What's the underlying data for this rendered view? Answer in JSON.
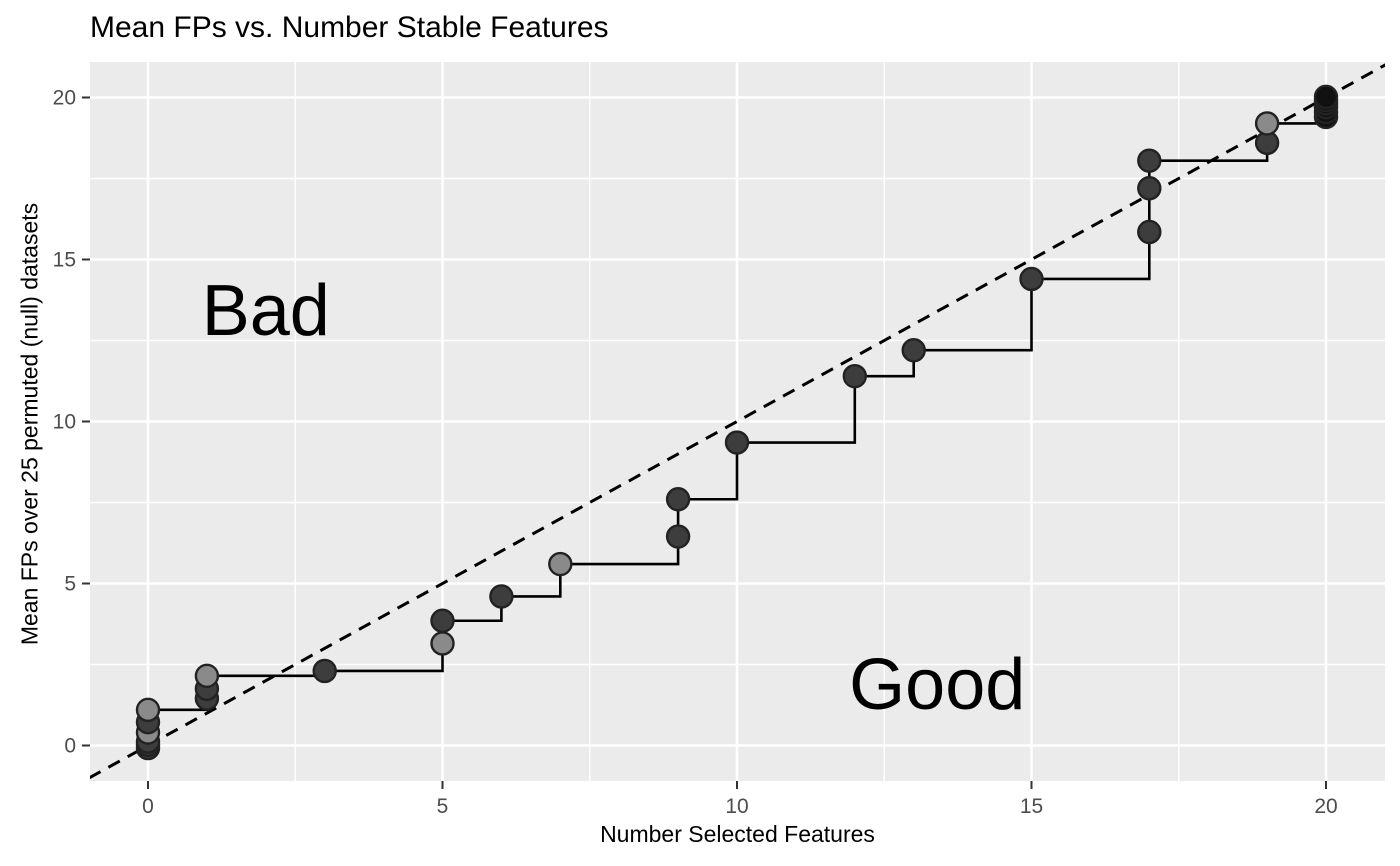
{
  "chart_data": {
    "type": "scatter",
    "title": "Mean FPs vs. Number Stable Features",
    "xlabel": "Number Selected Features",
    "ylabel": "Mean FPs over 25 permuted (null) datasets",
    "xlim": [
      -1,
      21.05
    ],
    "ylim": [
      -1.1,
      21.1
    ],
    "x_ticks": [
      0,
      5,
      10,
      15,
      20
    ],
    "y_ticks": [
      0,
      5,
      10,
      15,
      20
    ],
    "x_minor": [
      2.5,
      7.5,
      12.5,
      17.5
    ],
    "y_minor": [
      2.5,
      7.5,
      12.5,
      17.5
    ],
    "grid": true,
    "legend": "none",
    "panel_bg": "#EBEBEB",
    "grid_color": "#FFFFFF",
    "tick_label_color": "#4D4D4D",
    "tick_mark_color": "#333333",
    "point_stroke": "#222222",
    "point_colors": {
      "gray": "#8A8A8A",
      "dark": "#3D3D3D",
      "black": "#111111"
    },
    "identity_line": {
      "style": "dashed",
      "equation": "y = x",
      "color": "#000000"
    },
    "annotations": [
      {
        "text": "Bad",
        "x": 2.0,
        "y": 13.4
      },
      {
        "text": "Good",
        "x": 13.4,
        "y": 1.87
      }
    ],
    "step_line": {
      "x": [
        0,
        1,
        3,
        5,
        6,
        7,
        9,
        10,
        12,
        13,
        15,
        17,
        19,
        20
      ],
      "y": [
        1.1,
        2.15,
        2.3,
        3.85,
        4.6,
        5.6,
        7.6,
        9.35,
        11.4,
        12.2,
        14.4,
        18.05,
        19.2,
        19.95
      ]
    },
    "points": [
      {
        "x": 0,
        "y": -0.08,
        "shade": "dark"
      },
      {
        "x": 0,
        "y": 0.02,
        "shade": "dark"
      },
      {
        "x": 0,
        "y": 0.12,
        "shade": "dark"
      },
      {
        "x": 0,
        "y": 0.4,
        "shade": "gray"
      },
      {
        "x": 0,
        "y": 0.72,
        "shade": "dark"
      },
      {
        "x": 0,
        "y": 1.1,
        "shade": "gray"
      },
      {
        "x": 1,
        "y": 1.45,
        "shade": "dark"
      },
      {
        "x": 1,
        "y": 1.75,
        "shade": "dark"
      },
      {
        "x": 1,
        "y": 2.15,
        "shade": "gray"
      },
      {
        "x": 3,
        "y": 2.3,
        "shade": "dark"
      },
      {
        "x": 5,
        "y": 3.15,
        "shade": "gray"
      },
      {
        "x": 5,
        "y": 3.85,
        "shade": "dark"
      },
      {
        "x": 6,
        "y": 4.6,
        "shade": "dark"
      },
      {
        "x": 7,
        "y": 5.6,
        "shade": "gray"
      },
      {
        "x": 9,
        "y": 6.45,
        "shade": "dark"
      },
      {
        "x": 9,
        "y": 7.6,
        "shade": "dark"
      },
      {
        "x": 10,
        "y": 9.35,
        "shade": "dark"
      },
      {
        "x": 12,
        "y": 11.4,
        "shade": "dark"
      },
      {
        "x": 13,
        "y": 12.2,
        "shade": "dark"
      },
      {
        "x": 15,
        "y": 14.4,
        "shade": "dark"
      },
      {
        "x": 17,
        "y": 15.85,
        "shade": "dark"
      },
      {
        "x": 17,
        "y": 17.2,
        "shade": "dark"
      },
      {
        "x": 17,
        "y": 18.05,
        "shade": "dark"
      },
      {
        "x": 19,
        "y": 18.6,
        "shade": "dark"
      },
      {
        "x": 19,
        "y": 19.2,
        "shade": "gray"
      },
      {
        "x": 20,
        "y": 19.4,
        "shade": "black"
      },
      {
        "x": 20,
        "y": 19.55,
        "shade": "black"
      },
      {
        "x": 20,
        "y": 19.7,
        "shade": "black"
      },
      {
        "x": 20,
        "y": 19.82,
        "shade": "black"
      },
      {
        "x": 20,
        "y": 19.92,
        "shade": "black"
      },
      {
        "x": 20,
        "y": 20.02,
        "shade": "black"
      }
    ]
  }
}
